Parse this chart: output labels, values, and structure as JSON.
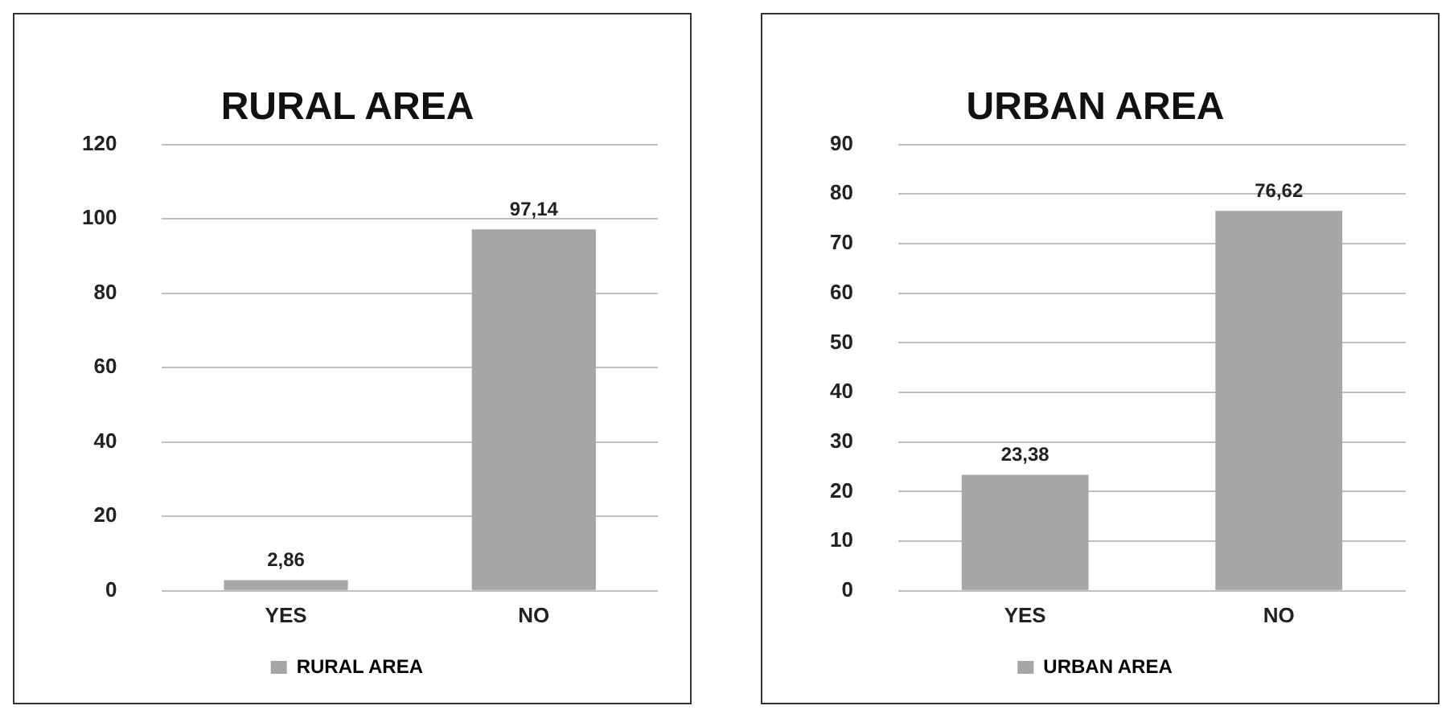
{
  "chart_data": [
    {
      "type": "bar",
      "title": "RURAL AREA",
      "categories": [
        "YES",
        "NO"
      ],
      "series": [
        {
          "name": "RURAL AREA",
          "color": "#a6a6a6",
          "values": [
            2.86,
            97.14
          ],
          "value_labels": [
            "2,86",
            "97,14"
          ]
        }
      ],
      "ylim": [
        0,
        120
      ],
      "yticks": [
        0,
        20,
        40,
        60,
        80,
        100,
        120
      ],
      "grid": "y",
      "legend": "bottom"
    },
    {
      "type": "bar",
      "title": "URBAN AREA",
      "categories": [
        "YES",
        "NO"
      ],
      "series": [
        {
          "name": "URBAN AREA",
          "color": "#a6a6a6",
          "values": [
            23.38,
            76.62
          ],
          "value_labels": [
            "23,38",
            "76,62"
          ]
        }
      ],
      "ylim": [
        0,
        90
      ],
      "yticks": [
        0,
        10,
        20,
        30,
        40,
        50,
        60,
        70,
        80,
        90
      ],
      "grid": "y",
      "legend": "bottom"
    }
  ]
}
